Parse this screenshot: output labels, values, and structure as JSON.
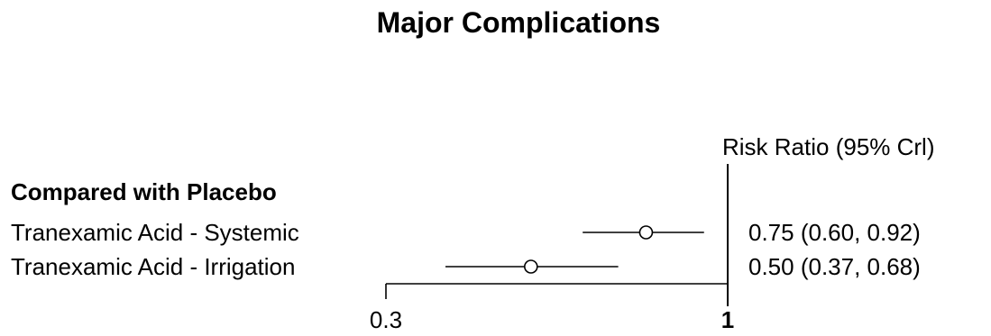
{
  "chart_data": {
    "type": "forest",
    "title": "Major Complications",
    "estimate_header": "Risk Ratio (95% Crl)",
    "group_label": "Compared with Placebo",
    "x_scale": "log",
    "xlim": [
      0.3,
      1
    ],
    "ticks": [
      "0.3",
      "1"
    ],
    "reference_line": 1,
    "rows": [
      {
        "name": "Tranexamic Acid - Systemic",
        "estimate": 0.75,
        "lower": 0.6,
        "upper": 0.92,
        "label": "0.75 (0.60, 0.92)"
      },
      {
        "name": "Tranexamic Acid - Irrigation",
        "estimate": 0.5,
        "lower": 0.37,
        "upper": 0.68,
        "label": "0.50 (0.37, 0.68)"
      }
    ]
  }
}
